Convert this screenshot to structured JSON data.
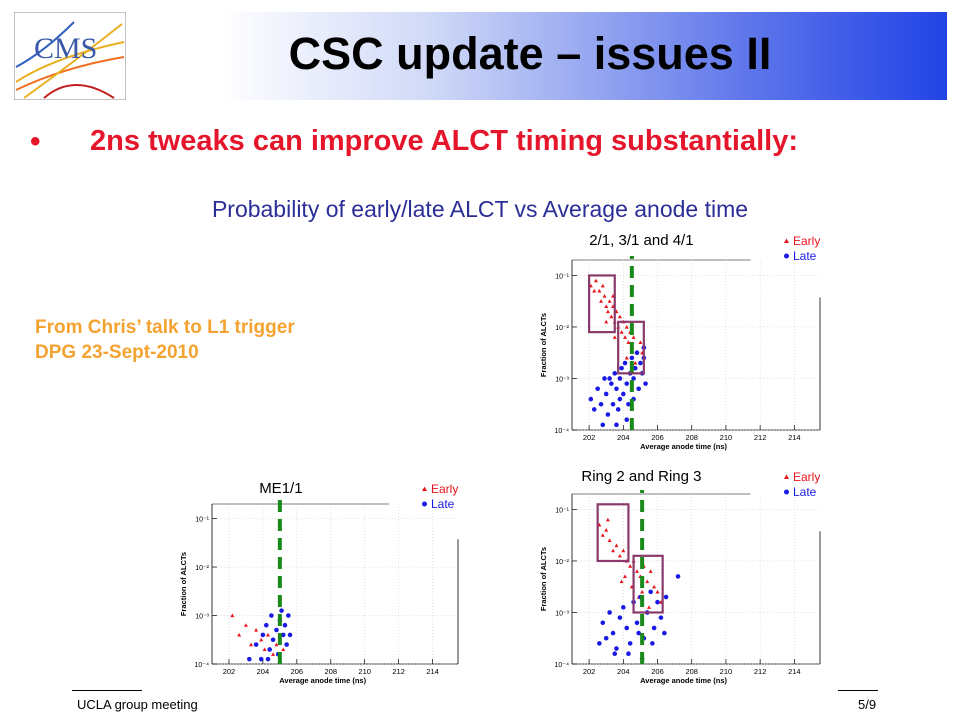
{
  "slide": {
    "title": "CSC update – issues II",
    "bullet_marker": "•",
    "bullet": "2ns tweaks can improve ALCT timing substantially:",
    "subtitle": "Probability of early/late ALCT vs Average anode time",
    "note": "From Chris’ talk to L1 trigger DPG 23-Sept-2010",
    "footer_left": "UCLA group meeting",
    "footer_right": "5/9",
    "logo_text": "CMS"
  },
  "colors": {
    "early": "#e8141c",
    "late": "#1a1ae6",
    "cut_line": "#1a8a1a",
    "box": "#8a3a6a",
    "bullet": "#e5162b",
    "note": "#f4a230",
    "subtitle": "#2a2e96"
  },
  "chart_data": [
    {
      "type": "scatter",
      "title": "2/1, 3/1 and 4/1",
      "xlabel": "Average anode time (ns)",
      "ylabel": "Fraction of ALCTs",
      "xlim": [
        201,
        215.5
      ],
      "ylim_log10": [
        -4,
        -0.7
      ],
      "x_ticks": [
        202,
        204,
        206,
        208,
        210,
        212,
        214
      ],
      "y_ticks": [
        "10⁻⁴",
        "10⁻³",
        "10⁻²",
        "10⁻¹"
      ],
      "legend": [
        "Early",
        "Late"
      ],
      "legend_position": "top-right",
      "grid": true,
      "cut_line_x": 204.5,
      "boxes": [
        {
          "x": [
            202.0,
            203.5
          ],
          "log10y": [
            -1.0,
            -2.1
          ]
        },
        {
          "x": [
            203.7,
            205.2
          ],
          "log10y": [
            -1.9,
            -2.9
          ]
        }
      ],
      "series": [
        {
          "name": "Early",
          "marker": "triangle",
          "points": [
            [
              202.1,
              -1.2
            ],
            [
              202.3,
              -1.3
            ],
            [
              202.4,
              -1.1
            ],
            [
              202.6,
              -1.3
            ],
            [
              202.7,
              -1.5
            ],
            [
              202.9,
              -1.4
            ],
            [
              203.0,
              -1.6
            ],
            [
              203.1,
              -1.7
            ],
            [
              203.2,
              -1.5
            ],
            [
              203.3,
              -1.8
            ],
            [
              203.4,
              -1.6
            ],
            [
              203.5,
              -1.9
            ],
            [
              203.6,
              -1.7
            ],
            [
              203.7,
              -2.0
            ],
            [
              203.8,
              -1.8
            ],
            [
              203.9,
              -2.1
            ],
            [
              204.0,
              -1.9
            ],
            [
              204.1,
              -2.2
            ],
            [
              204.2,
              -2.0
            ],
            [
              204.3,
              -2.3
            ],
            [
              204.4,
              -2.1
            ],
            [
              204.5,
              -2.4
            ],
            [
              204.6,
              -2.2
            ],
            [
              204.8,
              -2.5
            ],
            [
              205.0,
              -2.3
            ],
            [
              203.0,
              -1.9
            ],
            [
              203.5,
              -2.2
            ],
            [
              204.2,
              -2.6
            ],
            [
              204.7,
              -2.7
            ],
            [
              205.1,
              -2.5
            ],
            [
              202.8,
              -1.2
            ],
            [
              203.4,
              -1.4
            ]
          ]
        },
        {
          "name": "Late",
          "marker": "circle",
          "points": [
            [
              202.1,
              -3.4
            ],
            [
              202.3,
              -3.6
            ],
            [
              202.5,
              -3.2
            ],
            [
              202.7,
              -3.5
            ],
            [
              202.9,
              -3.0
            ],
            [
              203.0,
              -3.3
            ],
            [
              203.1,
              -3.7
            ],
            [
              203.3,
              -3.1
            ],
            [
              203.4,
              -3.5
            ],
            [
              203.5,
              -2.9
            ],
            [
              203.6,
              -3.2
            ],
            [
              203.7,
              -3.6
            ],
            [
              203.8,
              -3.0
            ],
            [
              203.9,
              -2.8
            ],
            [
              204.0,
              -3.3
            ],
            [
              204.1,
              -2.7
            ],
            [
              204.2,
              -3.1
            ],
            [
              204.3,
              -3.5
            ],
            [
              204.4,
              -2.9
            ],
            [
              204.5,
              -2.6
            ],
            [
              204.6,
              -3.0
            ],
            [
              204.7,
              -2.8
            ],
            [
              204.8,
              -2.5
            ],
            [
              204.9,
              -3.2
            ],
            [
              205.0,
              -2.7
            ],
            [
              205.1,
              -2.9
            ],
            [
              205.2,
              -2.6
            ],
            [
              205.3,
              -3.1
            ],
            [
              203.2,
              -3.0
            ],
            [
              203.8,
              -3.4
            ],
            [
              204.2,
              -3.8
            ],
            [
              204.6,
              -3.4
            ],
            [
              205.2,
              -2.4
            ],
            [
              202.8,
              -3.9
            ],
            [
              203.6,
              -3.9
            ]
          ]
        }
      ]
    },
    {
      "type": "scatter",
      "title": "ME1/1",
      "xlabel": "Average anode time (ns)",
      "ylabel": "Fraction of ALCTs",
      "xlim": [
        201,
        215.5
      ],
      "ylim_log10": [
        -4,
        -0.7
      ],
      "x_ticks": [
        202,
        204,
        206,
        208,
        210,
        212,
        214
      ],
      "y_ticks": [
        "10⁻⁴",
        "10⁻³",
        "10⁻²",
        "10⁻¹"
      ],
      "legend": [
        "Early",
        "Late"
      ],
      "legend_position": "top-right",
      "grid": true,
      "cut_line_x": 205.0,
      "boxes": [],
      "series": [
        {
          "name": "Early",
          "marker": "triangle",
          "points": [
            [
              202.2,
              -3.0
            ],
            [
              202.6,
              -3.4
            ],
            [
              203.0,
              -3.2
            ],
            [
              203.3,
              -3.6
            ],
            [
              203.6,
              -3.3
            ],
            [
              203.9,
              -3.5
            ],
            [
              204.1,
              -3.7
            ],
            [
              204.3,
              -3.4
            ],
            [
              204.6,
              -3.8
            ],
            [
              204.8,
              -3.6
            ],
            [
              205.2,
              -3.7
            ]
          ]
        },
        {
          "name": "Late",
          "marker": "circle",
          "points": [
            [
              203.6,
              -3.6
            ],
            [
              203.9,
              -3.9
            ],
            [
              204.0,
              -3.4
            ],
            [
              204.2,
              -3.2
            ],
            [
              204.4,
              -3.7
            ],
            [
              204.5,
              -3.0
            ],
            [
              204.6,
              -3.5
            ],
            [
              204.8,
              -3.3
            ],
            [
              204.9,
              -3.8
            ],
            [
              205.0,
              -3.1
            ],
            [
              205.1,
              -2.9
            ],
            [
              205.2,
              -3.4
            ],
            [
              205.3,
              -3.2
            ],
            [
              205.4,
              -3.6
            ],
            [
              205.5,
              -3.0
            ],
            [
              204.3,
              -3.9
            ],
            [
              205.6,
              -3.4
            ],
            [
              203.2,
              -3.9
            ]
          ]
        }
      ]
    },
    {
      "type": "scatter",
      "title": "Ring 2 and Ring 3",
      "xlabel": "Average anode time (ns)",
      "ylabel": "Fraction of ALCTs",
      "xlim": [
        201,
        215.5
      ],
      "ylim_log10": [
        -4,
        -0.7
      ],
      "x_ticks": [
        202,
        204,
        206,
        208,
        210,
        212,
        214
      ],
      "y_ticks": [
        "10⁻⁴",
        "10⁻³",
        "10⁻²",
        "10⁻¹"
      ],
      "legend": [
        "Early",
        "Late"
      ],
      "legend_position": "top-right",
      "grid": true,
      "cut_line_x": 205.1,
      "boxes": [
        {
          "x": [
            202.5,
            204.3
          ],
          "log10y": [
            -0.9,
            -2.0
          ]
        },
        {
          "x": [
            204.6,
            206.3
          ],
          "log10y": [
            -1.9,
            -3.0
          ]
        }
      ],
      "series": [
        {
          "name": "Early",
          "marker": "triangle",
          "points": [
            [
              202.6,
              -1.3
            ],
            [
              202.8,
              -1.5
            ],
            [
              203.0,
              -1.4
            ],
            [
              203.2,
              -1.6
            ],
            [
              203.4,
              -1.8
            ],
            [
              203.6,
              -1.7
            ],
            [
              203.8,
              -1.9
            ],
            [
              204.0,
              -1.8
            ],
            [
              204.2,
              -2.0
            ],
            [
              204.4,
              -2.1
            ],
            [
              204.6,
              -2.0
            ],
            [
              204.8,
              -2.2
            ],
            [
              205.0,
              -2.3
            ],
            [
              205.2,
              -2.1
            ],
            [
              205.4,
              -2.4
            ],
            [
              205.6,
              -2.2
            ],
            [
              205.8,
              -2.5
            ],
            [
              206.0,
              -2.6
            ],
            [
              204.1,
              -2.3
            ],
            [
              204.5,
              -2.5
            ],
            [
              205.1,
              -2.6
            ],
            [
              203.9,
              -2.4
            ],
            [
              206.2,
              -2.8
            ],
            [
              205.5,
              -2.9
            ],
            [
              204.9,
              -2.7
            ],
            [
              203.1,
              -1.2
            ]
          ]
        },
        {
          "name": "Late",
          "marker": "circle",
          "points": [
            [
              202.8,
              -3.2
            ],
            [
              203.0,
              -3.5
            ],
            [
              203.2,
              -3.0
            ],
            [
              203.4,
              -3.4
            ],
            [
              203.6,
              -3.7
            ],
            [
              203.8,
              -3.1
            ],
            [
              204.0,
              -2.9
            ],
            [
              204.2,
              -3.3
            ],
            [
              204.4,
              -3.6
            ],
            [
              204.6,
              -2.8
            ],
            [
              204.8,
              -3.2
            ],
            [
              205.0,
              -2.7
            ],
            [
              205.2,
              -3.5
            ],
            [
              205.4,
              -3.0
            ],
            [
              205.6,
              -2.6
            ],
            [
              205.8,
              -3.3
            ],
            [
              206.0,
              -2.8
            ],
            [
              206.2,
              -3.1
            ],
            [
              206.5,
              -2.7
            ],
            [
              207.2,
              -2.3
            ],
            [
              204.3,
              -3.8
            ],
            [
              205.1,
              -3.9
            ],
            [
              203.5,
              -3.8
            ],
            [
              204.9,
              -3.4
            ],
            [
              205.7,
              -3.6
            ],
            [
              206.4,
              -3.4
            ],
            [
              202.6,
              -3.6
            ]
          ]
        }
      ]
    }
  ]
}
